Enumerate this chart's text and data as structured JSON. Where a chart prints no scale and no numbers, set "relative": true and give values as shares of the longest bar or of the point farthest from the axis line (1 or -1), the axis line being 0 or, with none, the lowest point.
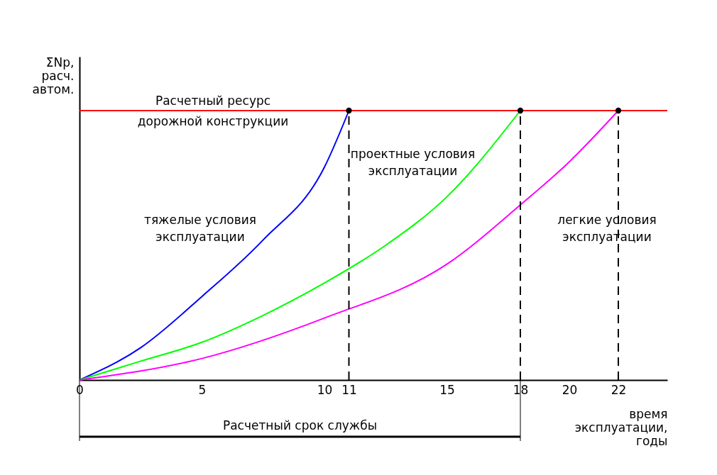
{
  "chart_data": {
    "type": "line",
    "relative": true,
    "xlabel": "время эксплуатации, годы",
    "ylabel": "ΣNp, расч. автом.",
    "xlim": [
      0,
      24
    ],
    "xticks": [
      0,
      5,
      10,
      11,
      15,
      18,
      20,
      22
    ],
    "grid": false,
    "series": [
      {
        "name": "тяжелые условия эксплуатации",
        "color": "#0000ff",
        "x": [
          0,
          2.5,
          5,
          7.5,
          10,
          11
        ],
        "values": [
          0,
          0.12,
          0.31,
          0.52,
          0.79,
          1
        ]
      },
      {
        "name": "проектные условия эксплуатации",
        "color": "#00ff00",
        "x": [
          0,
          2.5,
          5,
          7.5,
          10,
          12.5,
          15,
          18
        ],
        "values": [
          0,
          0.07,
          0.14,
          0.24,
          0.36,
          0.5,
          0.68,
          1
        ]
      },
      {
        "name": "легкие условия эксплуатации",
        "color": "#ff00ff",
        "x": [
          0,
          5,
          10,
          15,
          18,
          20,
          22
        ],
        "values": [
          0,
          0.08,
          0.23,
          0.43,
          0.65,
          0.81,
          1
        ]
      },
      {
        "type": "scatter",
        "color": "#000000",
        "x": [
          11,
          18,
          22
        ],
        "values": [
          1,
          1,
          1
        ]
      }
    ],
    "ref_lines": [
      {
        "axis": "y",
        "value": 1,
        "label": "Расчетный ресурс дорожной конструкции",
        "color": "#ff0000"
      },
      {
        "axis": "x",
        "value": 11,
        "color": "#000000",
        "line_style": "dashed"
      },
      {
        "axis": "x",
        "value": 18,
        "color": "#000000",
        "line_style": "dashed"
      },
      {
        "axis": "x",
        "value": 22,
        "color": "#000000",
        "line_style": "dashed"
      }
    ],
    "annotations": [
      "Расчетный срок службы"
    ]
  }
}
